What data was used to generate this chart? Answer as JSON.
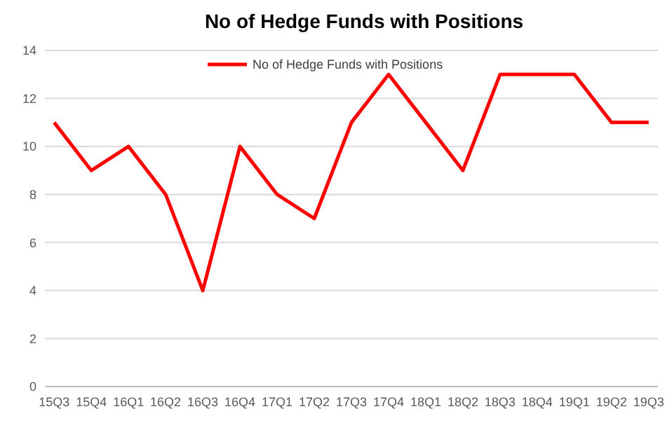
{
  "chart_data": {
    "type": "line",
    "title": "No of Hedge Funds with Positions",
    "categories": [
      "15Q3",
      "15Q4",
      "16Q1",
      "16Q2",
      "16Q3",
      "16Q4",
      "17Q1",
      "17Q2",
      "17Q3",
      "17Q4",
      "18Q1",
      "18Q2",
      "18Q3",
      "18Q4",
      "19Q1",
      "19Q2",
      "19Q3"
    ],
    "series": [
      {
        "name": "No of Hedge Funds with Positions",
        "color": "#ff0000",
        "values": [
          11,
          9,
          10,
          8,
          4,
          10,
          8,
          7,
          11,
          13,
          11,
          9,
          13,
          13,
          13,
          11,
          11
        ]
      }
    ],
    "ylim": [
      0,
      14
    ],
    "yticks": [
      0,
      2,
      4,
      6,
      8,
      10,
      12,
      14
    ],
    "grid": "y",
    "legend": "top",
    "marker": "none",
    "line_style": "solid"
  }
}
